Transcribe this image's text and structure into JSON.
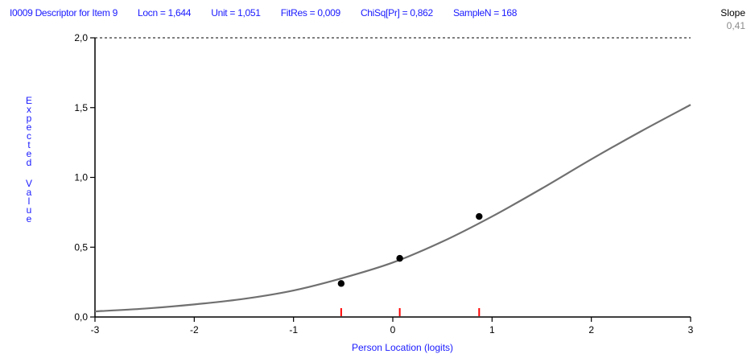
{
  "header": {
    "item": "I0009 Descriptor for Item 9",
    "locn": "Locn = 1,644",
    "unit": "Unit = 1,051",
    "fitres": "FitRes = 0,009",
    "chisq": "ChiSq[Pr] = 0,862",
    "samplen": "SampleN = 168"
  },
  "slope": {
    "title": "Slope",
    "value": "0,41"
  },
  "chart_data": {
    "type": "line",
    "ylabel": "Expected Value",
    "xlabel": "Person Location (logits)",
    "xlim": [
      -3,
      3
    ],
    "ylim": [
      0,
      2
    ],
    "x_ticks": [
      -3,
      -2,
      -1,
      0,
      1,
      2,
      3
    ],
    "x_tick_labels": [
      "-3",
      "-2",
      "-1",
      "0",
      "1",
      "2",
      "3"
    ],
    "y_ticks": [
      0,
      0.5,
      1,
      1.5,
      2
    ],
    "y_tick_labels": [
      "0,0",
      "0,5",
      "1,0",
      "1,5",
      "2,0"
    ],
    "max_reference_line": 2.0,
    "curve": {
      "x": [
        -3,
        -2.5,
        -2,
        -1.5,
        -1,
        -0.5,
        0,
        0.5,
        1,
        1.5,
        2,
        2.5,
        3
      ],
      "y": [
        0.04,
        0.06,
        0.09,
        0.13,
        0.19,
        0.28,
        0.39,
        0.54,
        0.72,
        0.92,
        1.13,
        1.33,
        1.52
      ]
    },
    "observed_points": {
      "x": [
        -0.52,
        0.07,
        0.87
      ],
      "y": [
        0.24,
        0.42,
        0.72
      ]
    },
    "class_interval_markers": [
      -0.52,
      0.07,
      0.87
    ],
    "colors": {
      "curve": "#707070",
      "points": "#000000",
      "markers": "#ff0000",
      "axis": "#000000",
      "text_blue": "#1a1aff"
    },
    "grid": false
  }
}
